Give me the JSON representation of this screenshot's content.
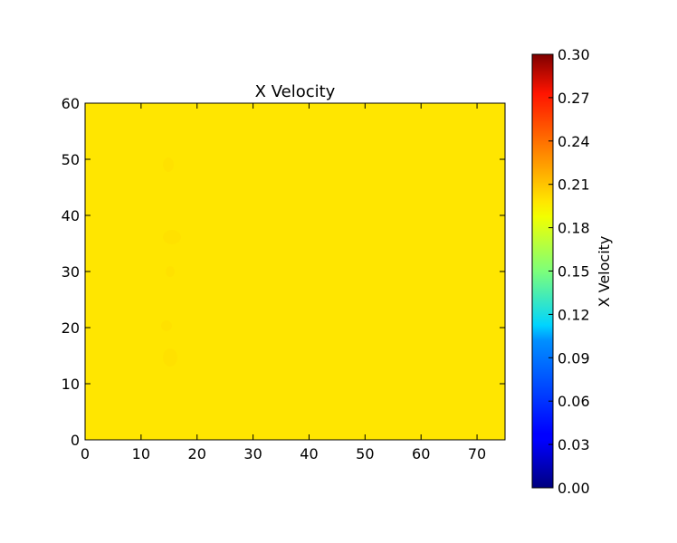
{
  "chart_data": {
    "type": "heatmap",
    "title": "X Velocity",
    "xlabel": "",
    "ylabel": "",
    "xlim": [
      0,
      75
    ],
    "ylim": [
      0,
      60
    ],
    "x_ticks": [
      0,
      10,
      20,
      30,
      40,
      50,
      60,
      70
    ],
    "y_ticks": [
      0,
      10,
      20,
      30,
      40,
      50,
      60
    ],
    "field_value": 0.2,
    "colormap": "jet",
    "colorbar": {
      "label": "X Velocity",
      "range": [
        0.0,
        0.3
      ],
      "ticks": [
        "0.00",
        "0.03",
        "0.06",
        "0.09",
        "0.12",
        "0.15",
        "0.18",
        "0.21",
        "0.24",
        "0.27",
        "0.30"
      ]
    },
    "field_color": "#ffe600",
    "grid": false
  }
}
